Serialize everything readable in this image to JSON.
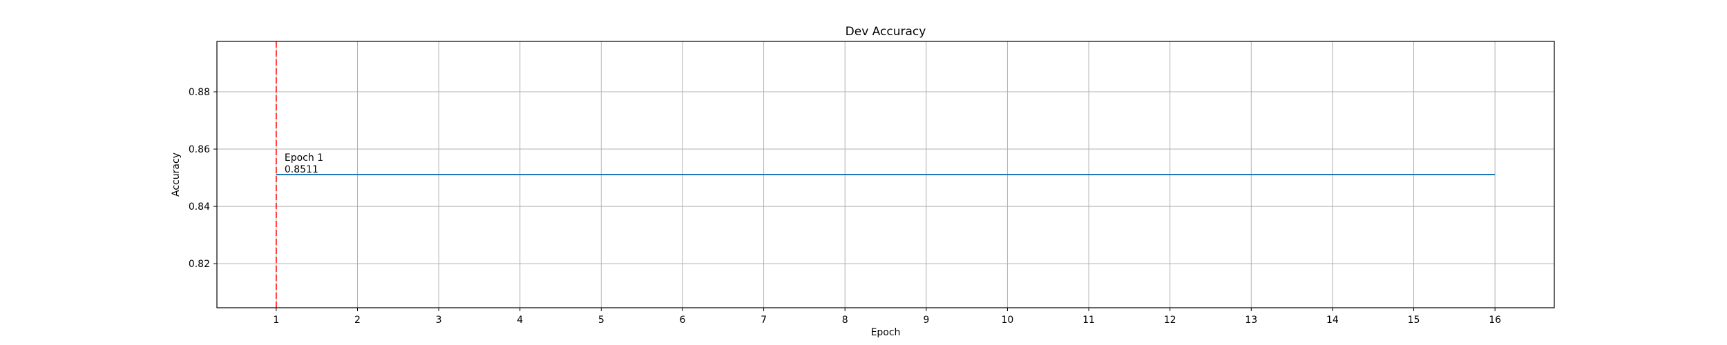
{
  "chart_data": {
    "type": "line",
    "title": "Dev Accuracy",
    "xlabel": "Epoch",
    "ylabel": "Accuracy",
    "xlim": [
      0.27,
      16.73
    ],
    "ylim": [
      0.8046,
      0.8976
    ],
    "x_ticks": [
      1,
      2,
      3,
      4,
      5,
      6,
      7,
      8,
      9,
      10,
      11,
      12,
      13,
      14,
      15,
      16
    ],
    "y_ticks": [
      0.82,
      0.84,
      0.86,
      0.88
    ],
    "y_tick_labels": [
      "0.82",
      "0.84",
      "0.86",
      "0.88"
    ],
    "grid": true,
    "series": [
      {
        "color": "#1f77b4",
        "x": [
          1,
          2,
          3,
          4,
          5,
          6,
          7,
          8,
          9,
          10,
          11,
          12,
          13,
          14,
          15,
          16
        ],
        "y": [
          0.8511,
          0.8511,
          0.8511,
          0.8511,
          0.8511,
          0.8511,
          0.8511,
          0.8511,
          0.8511,
          0.8511,
          0.8511,
          0.8511,
          0.8511,
          0.8511,
          0.8511,
          0.8511
        ]
      }
    ],
    "vline": {
      "x": 1,
      "color": "#ff0000",
      "style": "dashed"
    },
    "annotation": {
      "x": 1,
      "y": 0.8511,
      "lines": [
        "Epoch 1",
        "0.8511"
      ]
    }
  }
}
